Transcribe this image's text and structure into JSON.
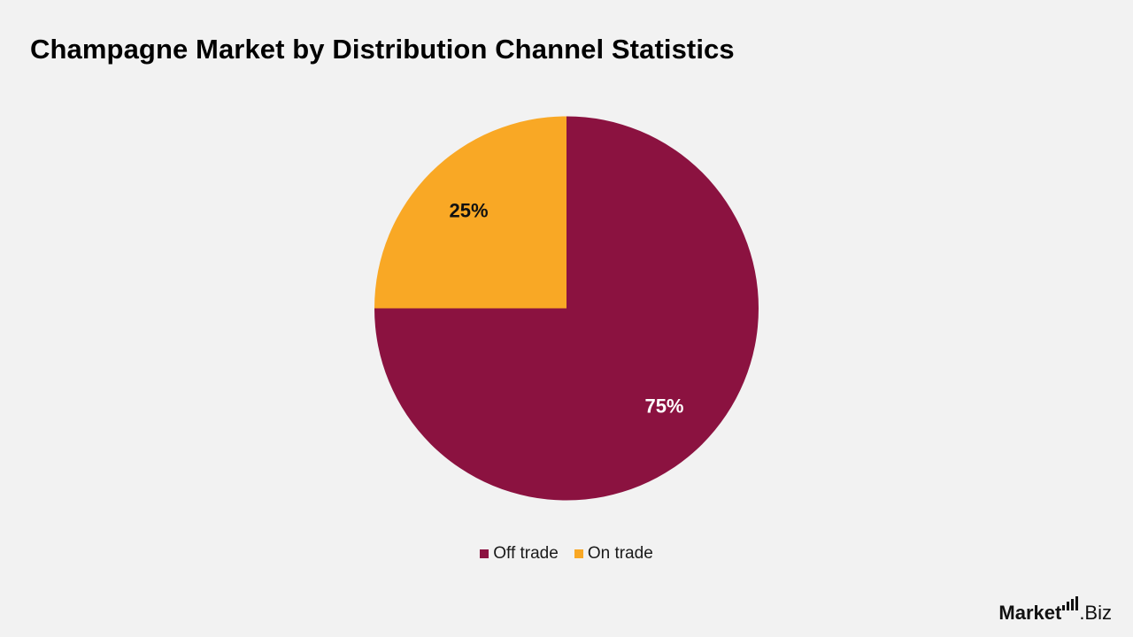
{
  "chart_data": {
    "type": "pie",
    "title": "Champagne Market by Distribution Channel Statistics",
    "slices": [
      {
        "label": "Off trade",
        "value": 75,
        "display": "75%",
        "color": "#8b1240",
        "label_color": "#ffffff"
      },
      {
        "label": "On trade",
        "value": 25,
        "display": "25%",
        "color": "#f9a825",
        "label_color": "#111111"
      }
    ],
    "start_angle_deg": 0,
    "direction": "clockwise",
    "legend_position": "bottom"
  },
  "colors": {
    "background": "#f2f2f2"
  },
  "brand": {
    "word": "Market",
    "suffix": ".Biz",
    "icon": "bar-chart-icon"
  }
}
